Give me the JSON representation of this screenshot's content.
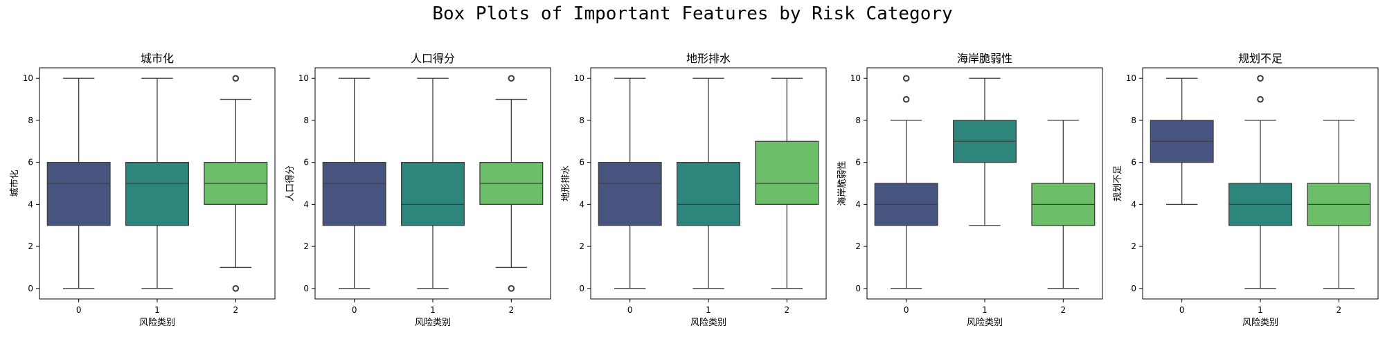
{
  "figure": {
    "title": "Box Plots of Important Features by Risk Category"
  },
  "chart_data": [
    {
      "type": "box",
      "title": "城市化",
      "xlabel": "风险类别",
      "ylabel": "城市化",
      "categories": [
        "0",
        "1",
        "2"
      ],
      "ylim": [
        -0.5,
        10.5
      ],
      "yticks": [
        0,
        2,
        4,
        6,
        8,
        10
      ],
      "colors": [
        "#46547f",
        "#2e857c",
        "#6cbe69"
      ],
      "boxes": [
        {
          "category": "0",
          "whislo": 0,
          "q1": 3,
          "med": 5,
          "q3": 6,
          "whishi": 10,
          "fliers": []
        },
        {
          "category": "1",
          "whislo": 0,
          "q1": 3,
          "med": 5,
          "q3": 6,
          "whishi": 10,
          "fliers": []
        },
        {
          "category": "2",
          "whislo": 1,
          "q1": 4,
          "med": 5,
          "q3": 6,
          "whishi": 9,
          "fliers": [
            0,
            10
          ]
        }
      ]
    },
    {
      "type": "box",
      "title": "人口得分",
      "xlabel": "风险类别",
      "ylabel": "人口得分",
      "categories": [
        "0",
        "1",
        "2"
      ],
      "ylim": [
        -0.5,
        10.5
      ],
      "yticks": [
        0,
        2,
        4,
        6,
        8,
        10
      ],
      "colors": [
        "#46547f",
        "#2e857c",
        "#6cbe69"
      ],
      "boxes": [
        {
          "category": "0",
          "whislo": 0,
          "q1": 3,
          "med": 5,
          "q3": 6,
          "whishi": 10,
          "fliers": []
        },
        {
          "category": "1",
          "whislo": 0,
          "q1": 3,
          "med": 4,
          "q3": 6,
          "whishi": 10,
          "fliers": []
        },
        {
          "category": "2",
          "whislo": 1,
          "q1": 4,
          "med": 5,
          "q3": 6,
          "whishi": 9,
          "fliers": [
            0,
            10
          ]
        }
      ]
    },
    {
      "type": "box",
      "title": "地形排水",
      "xlabel": "风险类别",
      "ylabel": "地形排水",
      "categories": [
        "0",
        "1",
        "2"
      ],
      "ylim": [
        -0.5,
        10.5
      ],
      "yticks": [
        0,
        2,
        4,
        6,
        8,
        10
      ],
      "colors": [
        "#46547f",
        "#2e857c",
        "#6cbe69"
      ],
      "boxes": [
        {
          "category": "0",
          "whislo": 0,
          "q1": 3,
          "med": 5,
          "q3": 6,
          "whishi": 10,
          "fliers": []
        },
        {
          "category": "1",
          "whislo": 0,
          "q1": 3,
          "med": 4,
          "q3": 6,
          "whishi": 10,
          "fliers": []
        },
        {
          "category": "2",
          "whislo": 0,
          "q1": 4,
          "med": 5,
          "q3": 7,
          "whishi": 10,
          "fliers": []
        }
      ]
    },
    {
      "type": "box",
      "title": "海岸脆弱性",
      "xlabel": "风险类别",
      "ylabel": "海岸脆弱性",
      "categories": [
        "0",
        "1",
        "2"
      ],
      "ylim": [
        -0.5,
        10.5
      ],
      "yticks": [
        0,
        2,
        4,
        6,
        8,
        10
      ],
      "colors": [
        "#46547f",
        "#2e857c",
        "#6cbe69"
      ],
      "boxes": [
        {
          "category": "0",
          "whislo": 0,
          "q1": 3,
          "med": 4,
          "q3": 5,
          "whishi": 8,
          "fliers": [
            9,
            10
          ]
        },
        {
          "category": "1",
          "whislo": 3,
          "q1": 6,
          "med": 7,
          "q3": 8,
          "whishi": 10,
          "fliers": []
        },
        {
          "category": "2",
          "whislo": 0,
          "q1": 3,
          "med": 4,
          "q3": 5,
          "whishi": 8,
          "fliers": []
        }
      ]
    },
    {
      "type": "box",
      "title": "规划不足",
      "xlabel": "风险类别",
      "ylabel": "规划不足",
      "categories": [
        "0",
        "1",
        "2"
      ],
      "ylim": [
        -0.5,
        10.5
      ],
      "yticks": [
        0,
        2,
        4,
        6,
        8,
        10
      ],
      "colors": [
        "#46547f",
        "#2e857c",
        "#6cbe69"
      ],
      "boxes": [
        {
          "category": "0",
          "whislo": 4,
          "q1": 6,
          "med": 7,
          "q3": 8,
          "whishi": 10,
          "fliers": []
        },
        {
          "category": "1",
          "whislo": 0,
          "q1": 3,
          "med": 4,
          "q3": 5,
          "whishi": 8,
          "fliers": [
            9,
            10
          ]
        },
        {
          "category": "2",
          "whislo": 0,
          "q1": 3,
          "med": 4,
          "q3": 5,
          "whishi": 8,
          "fliers": []
        }
      ]
    }
  ]
}
